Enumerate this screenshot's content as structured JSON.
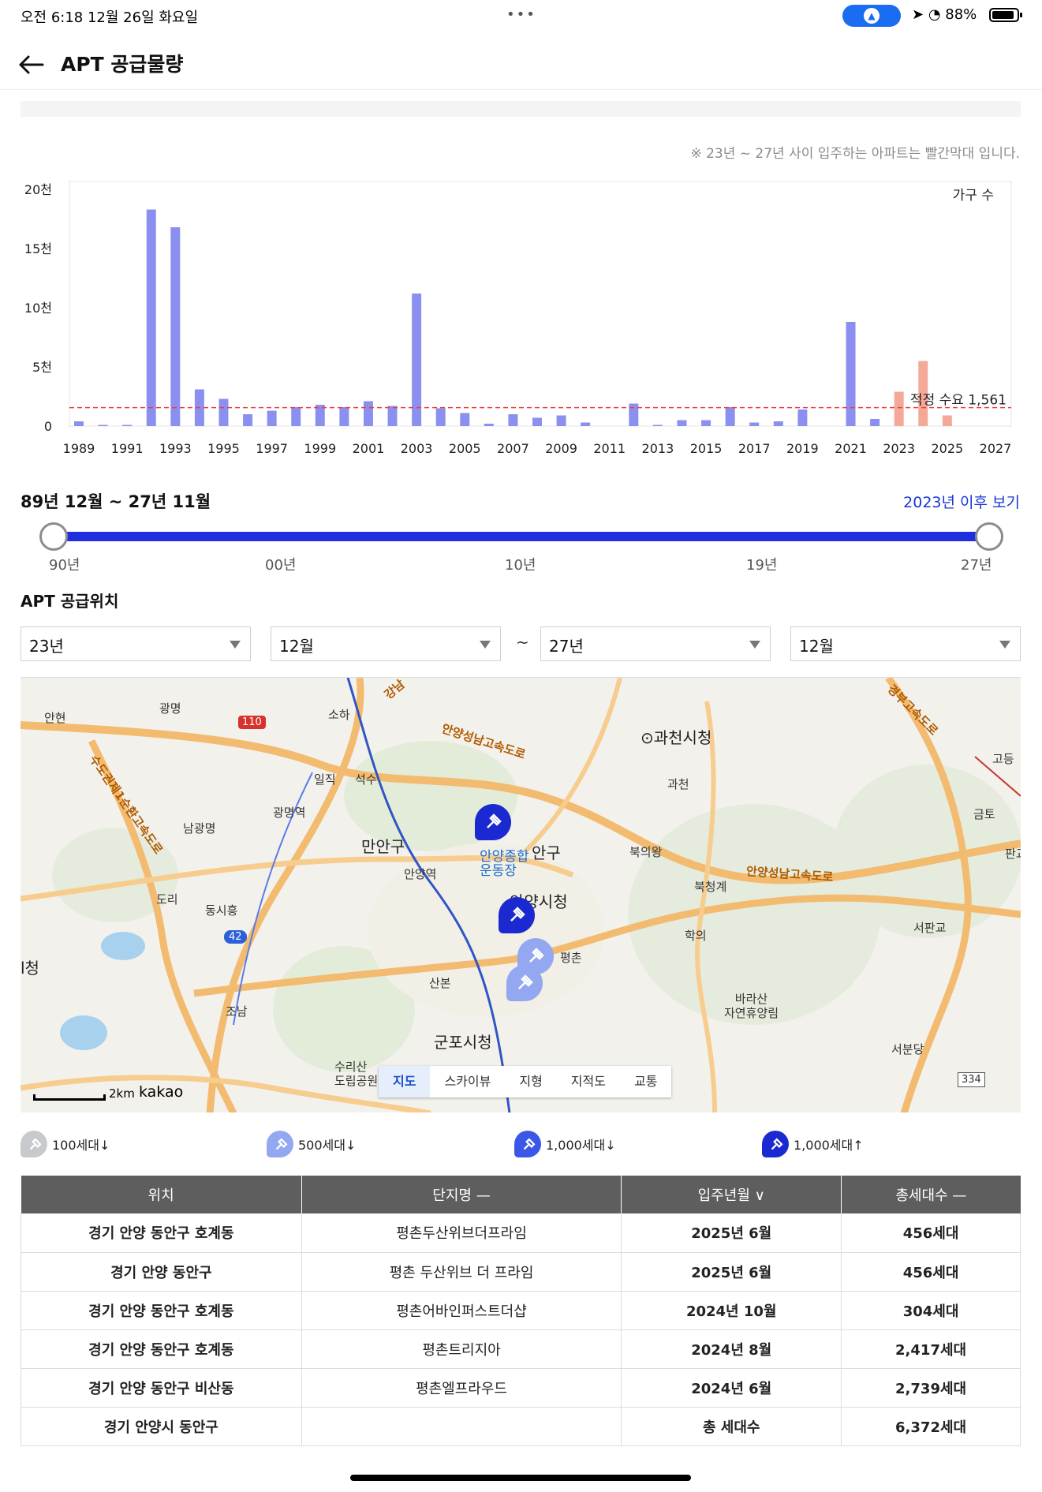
{
  "status": {
    "time": "오전 6:18   12월 26일 화요일",
    "dots": "•••",
    "battery": "88%"
  },
  "header": {
    "title": "APT 공급물량"
  },
  "chart_note": "※ 23년 ~ 27년 사이 입주하는 아파트는 빨간막대 입니다.",
  "chart_data": {
    "type": "bar",
    "title": "",
    "xlabel": "",
    "ylabel": "가구 수",
    "ylim": [
      0,
      20000
    ],
    "ytick_values": [
      0,
      5000,
      10000,
      15000,
      20000
    ],
    "ytick_labels": [
      "0",
      "5천",
      "10천",
      "15천",
      "20천"
    ],
    "xtick_labels": [
      "1989",
      "1991",
      "1993",
      "1995",
      "1997",
      "1999",
      "2001",
      "2003",
      "2005",
      "2007",
      "2009",
      "2011",
      "2013",
      "2015",
      "2017",
      "2019",
      "2021",
      "2023",
      "2025",
      "2027"
    ],
    "x": [
      1989,
      1990,
      1991,
      1992,
      1993,
      1994,
      1995,
      1996,
      1997,
      1998,
      1999,
      2000,
      2001,
      2002,
      2003,
      2004,
      2005,
      2006,
      2007,
      2008,
      2009,
      2010,
      2011,
      2012,
      2013,
      2014,
      2015,
      2016,
      2017,
      2018,
      2019,
      2020,
      2021,
      2022,
      2023,
      2024,
      2025,
      2026,
      2027
    ],
    "values": [
      400,
      100,
      100,
      18300,
      16800,
      3100,
      2300,
      1000,
      1300,
      1600,
      1800,
      1600,
      2100,
      1700,
      11200,
      1500,
      1100,
      200,
      1000,
      700,
      900,
      300,
      0,
      1900,
      100,
      500,
      500,
      1600,
      300,
      400,
      1400,
      0,
      8800,
      600,
      2900,
      5500,
      900,
      0,
      0
    ],
    "highlight_from": 2023,
    "bar_color": "#8b90f0",
    "highlight_color": "#f4a898",
    "reference_line": {
      "value": 1561,
      "label": "적정 수요 1,561",
      "color": "#e84040"
    },
    "grid": false
  },
  "range": {
    "label": "89년 12월 ~ 27년 11월",
    "after_link": "2023년 이후 보기",
    "ticks": [
      "90년",
      "00년",
      "10년",
      "19년",
      "27년"
    ]
  },
  "section_title": "APT 공급위치",
  "filters": {
    "from_year": "23년",
    "from_month": "12월",
    "tilde": "~",
    "to_year": "27년",
    "to_month": "12월"
  },
  "map": {
    "labels": {
      "gwacheon_hall": "⊙과천시청",
      "gwacheon": "과천",
      "gwangmyeong": "광명",
      "anhyeon": "안현",
      "soha": "소하",
      "iljik": "일직",
      "seoksu": "석수",
      "gwangmyeong_stn": "광명역",
      "namgwangmyeong": "남광명",
      "manan": "만안구",
      "anyang_stn": "안양역",
      "stadium": "안양종합\n운동장",
      "dongan": "안구",
      "anyang_hall": "안양시청",
      "bukuiwang": "북의왕",
      "bukcheonggye": "북청계",
      "hagui": "학의",
      "seopangyo": "서판교",
      "gobun": "고등",
      "geumto": "금토",
      "pan": "판교",
      "dori": "도리",
      "dongsiheung": "동시흥",
      "josan": "조남",
      "sanbon": "산본",
      "pyeongchon": "평촌",
      "gunpo_hall": "군포시청",
      "surisan": "수리산\n도립공원",
      "barasan": "바라산\n자연휴양림",
      "seobundang": "서분당",
      "cheong": "l청",
      "road_anyang_seongnam": "안양성남고속도로",
      "road_anyang_seongnam2": "안양성남고속도로",
      "road_sudogwon": "수도권제1순환고속도로",
      "road_gangnam": "강남",
      "road_gyeongbu": "경부고속도로",
      "shield_110": "110",
      "shield_42": "42",
      "shield_334": "334"
    },
    "tabs": [
      "지도",
      "스카이뷰",
      "지형",
      "지적도",
      "교통"
    ],
    "scale": "2km",
    "brand": "kakao"
  },
  "legend": [
    {
      "label": "100세대↓",
      "color": "#c7c9cc"
    },
    {
      "label": "500세대↓",
      "color": "#93a8f0"
    },
    {
      "label": "1,000세대↓",
      "color": "#3a57e8"
    },
    {
      "label": "1,000세대↑",
      "color": "#1a2ad0"
    }
  ],
  "table": {
    "headers": [
      "위치",
      "단지명 —",
      "입주년월 ∨",
      "총세대수 —"
    ],
    "rows": [
      [
        "경기 안양 동안구 호계동",
        "평촌두산위브더프라임",
        "2025년 6월",
        "456세대"
      ],
      [
        "경기 안양 동안구",
        "평촌 두산위브 더 프라임",
        "2025년 6월",
        "456세대"
      ],
      [
        "경기 안양 동안구 호계동",
        "평촌어바인퍼스트더샵",
        "2024년 10월",
        "304세대"
      ],
      [
        "경기 안양 동안구 호계동",
        "평촌트리지아",
        "2024년 8월",
        "2,417세대"
      ],
      [
        "경기 안양 동안구 비산동",
        "평촌엘프라우드",
        "2024년 6월",
        "2,739세대"
      ]
    ],
    "total": [
      "경기 안양시 동안구",
      "",
      "총 세대수",
      "6,372세대"
    ]
  }
}
